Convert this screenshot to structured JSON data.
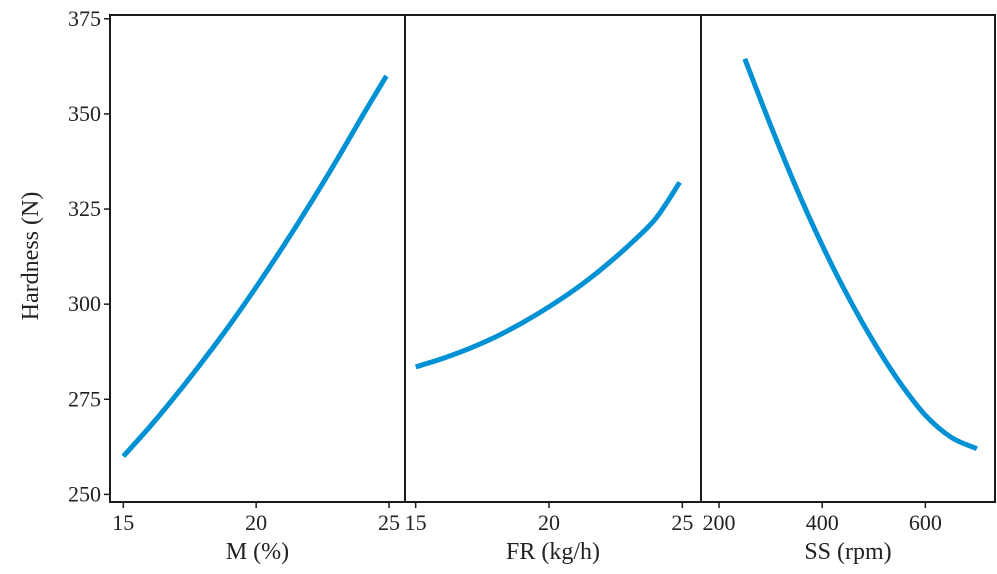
{
  "chart_data": {
    "type": "line",
    "ylabel": "Hardness (N)",
    "ylim": [
      248,
      376
    ],
    "yticks": [
      250,
      275,
      300,
      325,
      350,
      375
    ],
    "color": "#0091d5",
    "grid": false,
    "panels": [
      {
        "xlabel": "M (%)",
        "xlim": [
          14.5,
          25.6
        ],
        "xticks": [
          15,
          20,
          25
        ],
        "x": [
          15,
          16,
          17,
          18,
          19,
          20,
          21,
          22,
          23,
          24,
          24.9
        ],
        "y": [
          260,
          267.8,
          276.2,
          285.1,
          294.5,
          304.5,
          315.0,
          326.0,
          337.5,
          349.5,
          360.0
        ]
      },
      {
        "xlabel": "FR (kg/h)",
        "xlim": [
          14.6,
          25.7
        ],
        "xticks": [
          15,
          20,
          25
        ],
        "x": [
          15,
          16,
          17,
          18,
          19,
          20,
          21,
          22,
          23,
          24,
          24.9
        ],
        "y": [
          283.5,
          285.7,
          288.3,
          291.4,
          295.1,
          299.3,
          304.0,
          309.4,
          315.5,
          322.5,
          332.0
        ]
      },
      {
        "xlabel": "SS (rpm)",
        "xlim": [
          165,
          735
        ],
        "xticks": [
          200,
          400,
          600
        ],
        "x": [
          250,
          300,
          350,
          400,
          450,
          500,
          550,
          600,
          650,
          700
        ],
        "y": [
          364.5,
          347.0,
          330.5,
          315.5,
          302.0,
          290.0,
          279.5,
          270.8,
          265.0,
          262.0
        ]
      }
    ]
  }
}
